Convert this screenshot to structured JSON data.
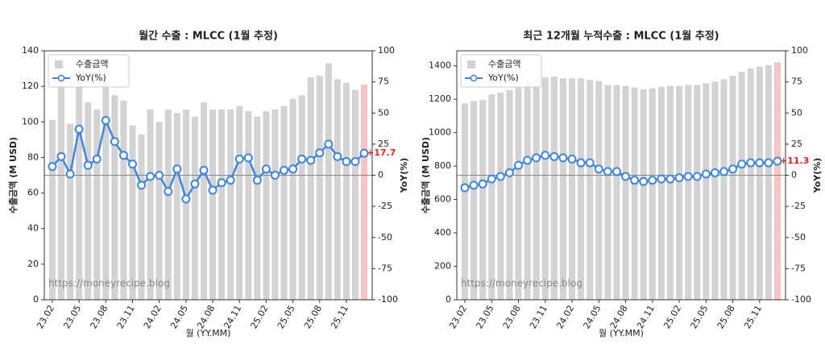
{
  "chart_data": [
    {
      "type": "bar_line",
      "title": "월간 수출 : MLCC (1월 추정)",
      "x_label": "월 (YY.MM)",
      "y_label": "수출금액 (M USD)",
      "y2_label": "YoY(%)",
      "watermark": "https://moneyrecipe.blog",
      "categories": [
        "23.02",
        null,
        null,
        "23.05",
        null,
        null,
        "23.08",
        null,
        null,
        "23.11",
        null,
        null,
        "24.02",
        null,
        null,
        "24.05",
        null,
        null,
        "24.08",
        null,
        null,
        "24.11",
        null,
        null,
        "25.02",
        null,
        null,
        "25.05",
        null,
        null,
        "25.08",
        null,
        null,
        "25.11",
        null,
        null
      ],
      "ylim": [
        0,
        140
      ],
      "yticks": [
        0,
        20,
        40,
        60,
        80,
        100,
        120,
        140
      ],
      "y2lim": [
        -100,
        100
      ],
      "y2ticks": [
        -100,
        -75,
        -50,
        -25,
        0,
        25,
        50,
        75,
        100
      ],
      "legend": "upper left",
      "series": [
        {
          "name": "수출금액",
          "color": "#d3d3d3",
          "highlight_color": "#f7c4c4",
          "values": [
            101,
            126,
            99,
            126,
            111,
            107,
            122,
            115,
            112,
            98,
            93,
            107,
            100,
            107,
            105,
            107,
            103,
            111,
            107,
            107,
            107,
            109,
            106,
            103,
            106,
            107,
            109,
            113,
            115,
            125,
            126,
            133,
            124,
            122,
            118,
            121
          ]
        },
        {
          "name": "YoY(%)",
          "color": "#3d85e6",
          "axis": "y2",
          "label_color": "#ff2020",
          "values": [
            7,
            15,
            1,
            37,
            8,
            13,
            44,
            27,
            16,
            9,
            -8,
            -1,
            0,
            -13,
            5,
            -19,
            -7,
            4,
            -12,
            -6,
            -4,
            13,
            14,
            -4,
            5,
            0,
            4,
            5,
            13,
            12,
            18,
            25,
            15,
            11,
            11,
            17.7
          ],
          "value_labels": [
            null,
            null,
            null,
            null,
            null,
            null,
            null,
            null,
            null,
            null,
            null,
            null,
            null,
            null,
            null,
            null,
            null,
            null,
            null,
            null,
            null,
            null,
            null,
            null,
            null,
            null,
            null,
            null,
            null,
            null,
            null,
            null,
            null,
            null,
            null,
            "+17.7"
          ]
        }
      ]
    },
    {
      "type": "bar_line",
      "title": "최근 12개월 누적수출 : MLCC (1월 추정)",
      "x_label": "월 (YY.MM)",
      "y_label": "수출금액 (M USD)",
      "y2_label": "YoY(%)",
      "watermark": "https://moneyrecipe.blog",
      "categories": [
        "23.02",
        null,
        null,
        "23.05",
        null,
        null,
        "23.08",
        null,
        null,
        "23.11",
        null,
        null,
        "24.02",
        null,
        null,
        "24.05",
        null,
        null,
        "24.08",
        null,
        null,
        "24.11",
        null,
        null,
        "25.02",
        null,
        null,
        "25.05",
        null,
        null,
        "25.08",
        null,
        null,
        "25.11",
        null,
        null
      ],
      "ylim": [
        0,
        1490
      ],
      "yticks": [
        0,
        200,
        400,
        600,
        800,
        1000,
        1200,
        1400
      ],
      "y2lim": [
        -100,
        100
      ],
      "y2ticks": [
        -100,
        -75,
        -50,
        -25,
        0,
        25,
        50,
        75,
        100
      ],
      "legend": "upper left",
      "series": [
        {
          "name": "수출금액",
          "color": "#d3d3d3",
          "highlight_color": "#f7c4c4",
          "values": [
            1175,
            1190,
            1195,
            1230,
            1240,
            1255,
            1285,
            1305,
            1320,
            1330,
            1335,
            1325,
            1325,
            1325,
            1315,
            1310,
            1285,
            1285,
            1280,
            1270,
            1260,
            1265,
            1275,
            1280,
            1280,
            1285,
            1285,
            1295,
            1305,
            1320,
            1340,
            1365,
            1385,
            1395,
            1405,
            1420
          ]
        },
        {
          "name": "YoY(%)",
          "color": "#3d85e6",
          "axis": "y2",
          "label_color": "#ff2020",
          "values": [
            -10,
            -8,
            -7,
            -3,
            -1,
            2,
            8,
            12,
            14,
            16,
            15,
            14,
            13,
            10,
            10,
            5,
            3,
            3,
            -1,
            -4,
            -5,
            -4,
            -3,
            -3,
            -2,
            -1,
            -1,
            1,
            2,
            3,
            5,
            9,
            10,
            10,
            10,
            11.3
          ],
          "value_labels": [
            null,
            null,
            null,
            null,
            null,
            null,
            null,
            null,
            null,
            null,
            null,
            null,
            null,
            null,
            null,
            null,
            null,
            null,
            null,
            null,
            null,
            null,
            null,
            null,
            null,
            null,
            null,
            null,
            null,
            null,
            null,
            null,
            null,
            null,
            null,
            "+11.3"
          ]
        }
      ]
    }
  ]
}
